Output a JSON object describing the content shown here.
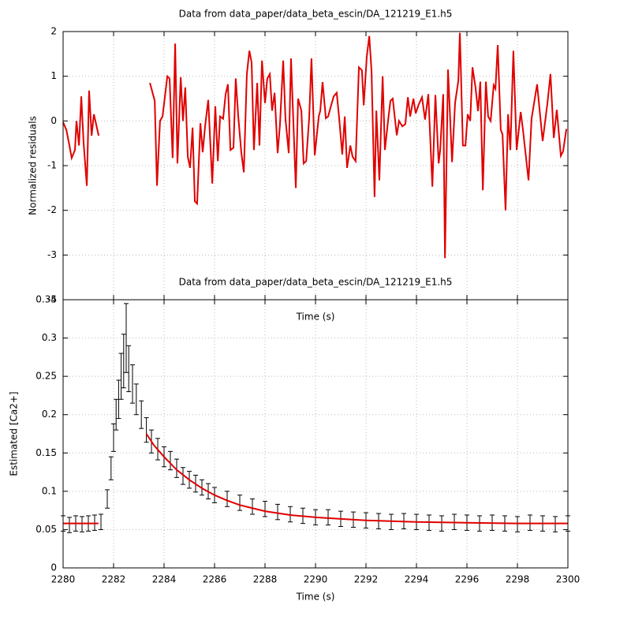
{
  "chart_data": [
    {
      "type": "line",
      "title": "Data from data_paper/data_beta_escin/DA_121219_E1.h5",
      "xlabel": "Time (s)",
      "ylabel": "Normalized residuals",
      "color": "#e00000",
      "xlim": [
        2280,
        2300
      ],
      "xticks": [
        2280,
        2282,
        2284,
        2286,
        2288,
        2290,
        2292,
        2294,
        2296,
        2298,
        2300
      ],
      "ylim": [
        -4,
        2
      ],
      "yticks": [
        -4,
        -3,
        -2,
        -1,
        0,
        1,
        2
      ],
      "grid": true,
      "x": [
        2280.0,
        2280.13,
        2280.25,
        2280.34,
        2280.47,
        2280.53,
        2280.63,
        2280.72,
        2280.81,
        2280.94,
        2281.03,
        2281.13,
        2281.22,
        2281.41,
        2282.4,
        2283.44,
        2283.63,
        2283.72,
        2283.84,
        2283.94,
        2284.13,
        2284.22,
        2284.34,
        2284.44,
        2284.53,
        2284.66,
        2284.75,
        2284.84,
        2284.94,
        2285.03,
        2285.13,
        2285.22,
        2285.31,
        2285.44,
        2285.53,
        2285.63,
        2285.75,
        2285.91,
        2286.03,
        2286.13,
        2286.22,
        2286.34,
        2286.44,
        2286.53,
        2286.63,
        2286.75,
        2286.84,
        2286.94,
        2287.06,
        2287.16,
        2287.28,
        2287.38,
        2287.47,
        2287.56,
        2287.69,
        2287.78,
        2287.88,
        2288.0,
        2288.09,
        2288.19,
        2288.28,
        2288.38,
        2288.5,
        2288.59,
        2288.72,
        2288.81,
        2288.94,
        2289.03,
        2289.22,
        2289.31,
        2289.44,
        2289.53,
        2289.63,
        2289.75,
        2289.84,
        2289.97,
        2290.13,
        2290.19,
        2290.28,
        2290.41,
        2290.5,
        2290.63,
        2290.72,
        2290.84,
        2290.94,
        2291.06,
        2291.16,
        2291.25,
        2291.38,
        2291.47,
        2291.59,
        2291.72,
        2291.84,
        2291.91,
        2292.03,
        2292.13,
        2292.22,
        2292.34,
        2292.41,
        2292.53,
        2292.66,
        2292.75,
        2292.88,
        2292.97,
        2293.06,
        2293.22,
        2293.31,
        2293.44,
        2293.56,
        2293.66,
        2293.75,
        2293.88,
        2293.97,
        2294.09,
        2294.22,
        2294.34,
        2294.47,
        2294.63,
        2294.75,
        2294.88,
        2294.94,
        2295.06,
        2295.13,
        2295.25,
        2295.41,
        2295.53,
        2295.66,
        2295.72,
        2295.84,
        2295.94,
        2296.03,
        2296.13,
        2296.22,
        2296.34,
        2296.44,
        2296.53,
        2296.63,
        2296.75,
        2296.84,
        2296.94,
        2297.06,
        2297.13,
        2297.22,
        2297.34,
        2297.41,
        2297.53,
        2297.63,
        2297.72,
        2297.84,
        2297.97,
        2298.13,
        2298.22,
        2298.44,
        2298.56,
        2298.78,
        2299.0,
        2299.19,
        2299.31,
        2299.44,
        2299.56,
        2299.72,
        2299.81,
        2299.94
      ],
      "values": [
        -0.03,
        -0.2,
        -0.55,
        -0.83,
        -0.65,
        0,
        -0.55,
        0.55,
        -0.47,
        -1.45,
        0.68,
        -0.33,
        0.15,
        -0.33,
        null,
        0.85,
        0.45,
        -1.45,
        0,
        0.1,
        1,
        0.95,
        -0.83,
        1.73,
        -0.95,
        0.98,
        0,
        0.75,
        -0.8,
        -1.05,
        -0.15,
        -1.8,
        -1.85,
        -0.05,
        -0.7,
        -0.1,
        0.47,
        -1.4,
        0.33,
        -0.9,
        0.1,
        0.05,
        0.6,
        0.82,
        -0.65,
        -0.6,
        0.95,
        0.1,
        -0.7,
        -1.15,
        1.05,
        1.57,
        1.3,
        -0.65,
        0.85,
        -0.55,
        1.35,
        0.4,
        0.95,
        1.05,
        0.23,
        0.63,
        -0.72,
        -0.1,
        1.35,
        0.05,
        -0.72,
        1.4,
        -1.5,
        0.5,
        0.23,
        -0.95,
        -0.9,
        0.07,
        1.4,
        -0.77,
        0.1,
        0.23,
        0.87,
        0.06,
        0.1,
        0.37,
        0.55,
        0.63,
        0.05,
        -0.75,
        0.1,
        -1.05,
        -0.55,
        -0.8,
        -0.9,
        1.2,
        1.13,
        0.35,
        1.43,
        1.9,
        1.12,
        -1.7,
        0.23,
        -1.33,
        1,
        -0.65,
        0.03,
        0.45,
        0.5,
        -0.32,
        0,
        -0.12,
        -0.07,
        0.53,
        0.1,
        0.5,
        0.17,
        0.37,
        0.53,
        0.03,
        0.6,
        -1.47,
        0.58,
        -0.95,
        -0.65,
        0.6,
        -3.07,
        1.15,
        -0.92,
        0.4,
        0.9,
        1.97,
        -0.55,
        -0.55,
        0.15,
        0,
        1.2,
        0.75,
        0.22,
        0.88,
        -1.55,
        0.88,
        0.1,
        0,
        0.8,
        0.72,
        1.7,
        -0.2,
        -0.3,
        -2,
        0.15,
        -0.65,
        1.57,
        -0.65,
        0.2,
        -0.2,
        -1.33,
        0.05,
        0.82,
        -0.45,
        0.4,
        1.05,
        -0.38,
        0.25,
        -0.78,
        -0.68,
        -0.18
      ]
    },
    {
      "type": "errorbar",
      "title": "Data from data_paper/data_beta_escin/DA_121219_E1.h5",
      "xlabel": "Time (s)",
      "ylabel": "Estimated [Ca2+]",
      "xlim": [
        2280,
        2300
      ],
      "xticks": [
        2280,
        2282,
        2284,
        2286,
        2288,
        2290,
        2292,
        2294,
        2296,
        2298,
        2300
      ],
      "ylim": [
        0,
        0.35
      ],
      "yticks": [
        0,
        0.05,
        0.1,
        0.15,
        0.2,
        0.25,
        0.3,
        0.35
      ],
      "grid": true,
      "series": [
        {
          "color": "#000000",
          "x": [
            2280,
            2280.25,
            2280.5,
            2280.75,
            2281,
            2281.25,
            2281.5,
            2281.75,
            2281.9,
            2282,
            2282.1,
            2282.2,
            2282.3,
            2282.4,
            2282.5,
            2282.6,
            2282.75,
            2282.9,
            2283.1,
            2283.3,
            2283.5,
            2283.75,
            2284,
            2284.25,
            2284.5,
            2284.75,
            2285,
            2285.25,
            2285.5,
            2285.75,
            2286,
            2286.5,
            2287,
            2287.5,
            2288,
            2288.5,
            2289,
            2289.5,
            2290,
            2290.5,
            2291,
            2291.5,
            2292,
            2292.5,
            2293,
            2293.5,
            2294,
            2294.5,
            2295,
            2295.5,
            2296,
            2296.5,
            2297,
            2297.5,
            2298,
            2298.5,
            2299,
            2299.5,
            2300
          ],
          "values": [
            0.058,
            0.056,
            0.058,
            0.057,
            0.058,
            0.059,
            0.06,
            0.09,
            0.13,
            0.17,
            0.2,
            0.22,
            0.25,
            0.27,
            0.3,
            0.26,
            0.24,
            0.22,
            0.2,
            0.18,
            0.165,
            0.155,
            0.145,
            0.14,
            0.13,
            0.12,
            0.115,
            0.11,
            0.105,
            0.1,
            0.095,
            0.09,
            0.085,
            0.08,
            0.077,
            0.073,
            0.07,
            0.068,
            0.066,
            0.066,
            0.064,
            0.063,
            0.062,
            0.061,
            0.06,
            0.061,
            0.06,
            0.059,
            0.058,
            0.06,
            0.059,
            0.058,
            0.059,
            0.058,
            0.057,
            0.059,
            0.058,
            0.057,
            0.058
          ],
          "errors": [
            0.01,
            0.01,
            0.01,
            0.01,
            0.01,
            0.01,
            0.01,
            0.012,
            0.015,
            0.018,
            0.02,
            0.025,
            0.03,
            0.035,
            0.045,
            0.03,
            0.025,
            0.02,
            0.018,
            0.016,
            0.015,
            0.014,
            0.013,
            0.012,
            0.012,
            0.011,
            0.011,
            0.011,
            0.01,
            0.01,
            0.01,
            0.01,
            0.01,
            0.01,
            0.01,
            0.01,
            0.01,
            0.01,
            0.01,
            0.01,
            0.01,
            0.01,
            0.01,
            0.01,
            0.01,
            0.01,
            0.01,
            0.01,
            0.01,
            0.01,
            0.01,
            0.01,
            0.01,
            0.01,
            0.01,
            0.01,
            0.01,
            0.01,
            0.01
          ]
        },
        {
          "color": "#e00000",
          "x": [
            2280,
            2280.5,
            2281,
            2281.4,
            2282.4,
            2283.3,
            2283.6,
            2284,
            2284.5,
            2285,
            2285.5,
            2286,
            2286.5,
            2287,
            2287.5,
            2288,
            2289,
            2290,
            2291,
            2292,
            2294,
            2296,
            2298,
            2300
          ],
          "values": [
            0.058,
            0.058,
            0.058,
            0.058,
            null,
            0.175,
            0.16,
            0.145,
            0.128,
            0.115,
            0.104,
            0.095,
            0.088,
            0.082,
            0.078,
            0.074,
            0.069,
            0.066,
            0.064,
            0.062,
            0.06,
            0.059,
            0.058,
            0.058
          ]
        }
      ]
    }
  ]
}
